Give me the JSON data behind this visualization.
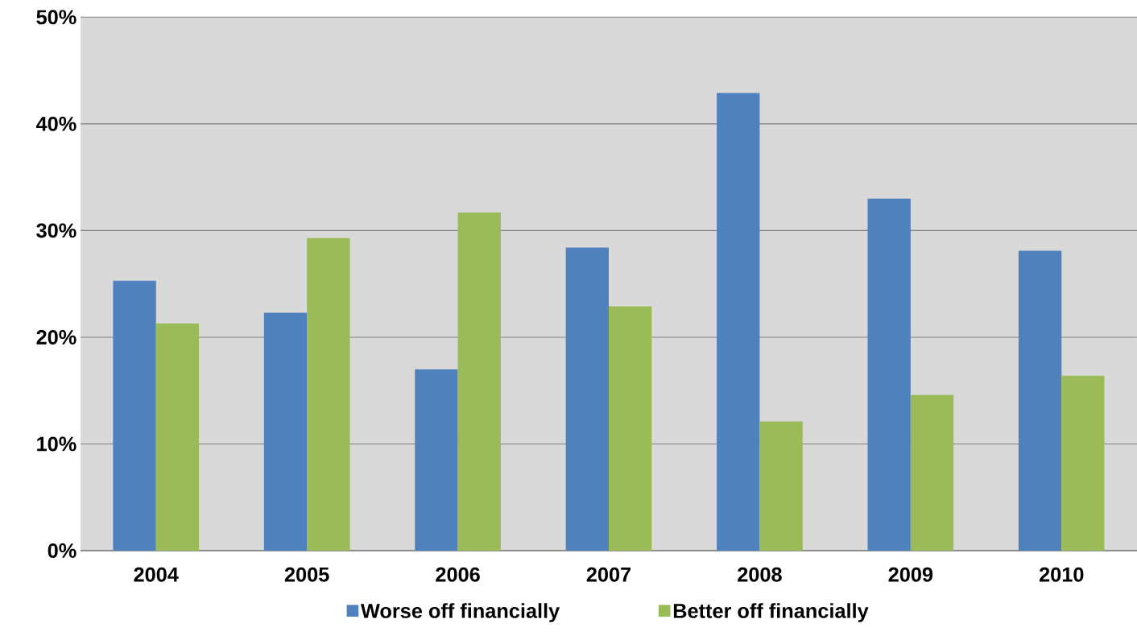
{
  "chart_data": {
    "type": "bar",
    "categories": [
      "2004",
      "2005",
      "2006",
      "2007",
      "2008",
      "2009",
      "2010"
    ],
    "series": [
      {
        "name": "Worse off financially",
        "color": "#4f81bd",
        "values": [
          25.3,
          22.3,
          17.0,
          28.4,
          42.9,
          33.0,
          28.1
        ]
      },
      {
        "name": "Better off financially",
        "color": "#9bbb59",
        "values": [
          21.3,
          29.3,
          31.7,
          22.9,
          12.1,
          14.6,
          16.4
        ]
      }
    ],
    "ylim": [
      0,
      50
    ],
    "yticks": [
      {
        "value": 0,
        "label": "0%"
      },
      {
        "value": 10,
        "label": "10%"
      },
      {
        "value": 20,
        "label": "20%"
      },
      {
        "value": 30,
        "label": "30%"
      },
      {
        "value": 40,
        "label": "40%"
      },
      {
        "value": 50,
        "label": "50%"
      }
    ],
    "grid": "y",
    "legend": "bottom"
  }
}
